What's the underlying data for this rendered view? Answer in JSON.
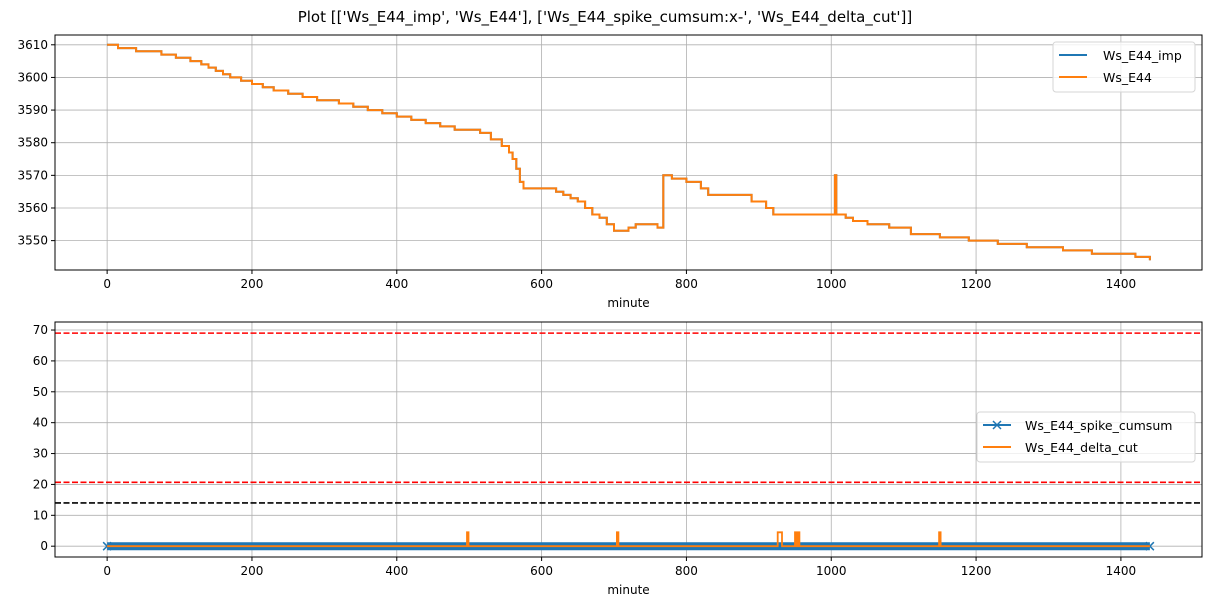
{
  "title": "Plot [['Ws_E44_imp', 'Ws_E44'], ['Ws_E44_spike_cumsum:x-', 'Ws_E44_delta_cut']]",
  "colors": {
    "blue": "#1f77b4",
    "orange": "#ff7f0e",
    "red": "#ff0000",
    "black": "#000000",
    "grid": "#b0b0b0"
  },
  "chart_data": [
    {
      "type": "line",
      "xlabel": "minute",
      "ylabel": "",
      "xlim": [
        -72,
        1512
      ],
      "ylim": [
        3541,
        3613
      ],
      "xticks": [
        0,
        200,
        400,
        600,
        800,
        1000,
        1200,
        1400
      ],
      "yticks": [
        3550,
        3560,
        3570,
        3580,
        3590,
        3600,
        3610
      ],
      "grid": true,
      "legend_position": "upper right",
      "series": [
        {
          "name": "Ws_E44_imp",
          "color": "#1f77b4",
          "style": "step",
          "points": [
            [
              0,
              3610
            ],
            [
              15,
              3609
            ],
            [
              40,
              3608
            ],
            [
              75,
              3607
            ],
            [
              95,
              3606
            ],
            [
              115,
              3605
            ],
            [
              130,
              3604
            ],
            [
              140,
              3603
            ],
            [
              150,
              3602
            ],
            [
              160,
              3601
            ],
            [
              170,
              3600
            ],
            [
              185,
              3599
            ],
            [
              200,
              3598
            ],
            [
              215,
              3597
            ],
            [
              230,
              3596
            ],
            [
              250,
              3595
            ],
            [
              270,
              3594
            ],
            [
              290,
              3593
            ],
            [
              320,
              3592
            ],
            [
              340,
              3591
            ],
            [
              360,
              3590
            ],
            [
              380,
              3589
            ],
            [
              400,
              3588
            ],
            [
              420,
              3587
            ],
            [
              440,
              3586
            ],
            [
              460,
              3585
            ],
            [
              480,
              3584
            ],
            [
              515,
              3583
            ],
            [
              530,
              3581
            ],
            [
              545,
              3579
            ],
            [
              555,
              3577
            ],
            [
              560,
              3575
            ],
            [
              565,
              3572
            ],
            [
              570,
              3568
            ],
            [
              575,
              3566
            ],
            [
              620,
              3565
            ],
            [
              630,
              3564
            ],
            [
              640,
              3563
            ],
            [
              650,
              3562
            ],
            [
              660,
              3560
            ],
            [
              670,
              3558
            ],
            [
              680,
              3557
            ],
            [
              690,
              3555
            ],
            [
              700,
              3553
            ],
            [
              720,
              3554
            ],
            [
              730,
              3555
            ],
            [
              760,
              3554
            ],
            [
              768,
              3570
            ],
            [
              780,
              3569
            ],
            [
              800,
              3568
            ],
            [
              820,
              3566
            ],
            [
              830,
              3564
            ],
            [
              870,
              3564
            ],
            [
              890,
              3562
            ],
            [
              910,
              3560
            ],
            [
              920,
              3558
            ],
            [
              1000,
              3558
            ],
            [
              1005,
              3570
            ],
            [
              1007,
              3558
            ],
            [
              1020,
              3557
            ],
            [
              1030,
              3556
            ],
            [
              1050,
              3555
            ],
            [
              1080,
              3554
            ],
            [
              1110,
              3552
            ],
            [
              1150,
              3551
            ],
            [
              1190,
              3550
            ],
            [
              1230,
              3549
            ],
            [
              1270,
              3548
            ],
            [
              1320,
              3547
            ],
            [
              1360,
              3546
            ],
            [
              1420,
              3545
            ],
            [
              1440,
              3544
            ]
          ]
        },
        {
          "name": "Ws_E44",
          "color": "#ff7f0e",
          "style": "step",
          "points": [
            [
              0,
              3610
            ],
            [
              15,
              3609
            ],
            [
              40,
              3608
            ],
            [
              75,
              3607
            ],
            [
              95,
              3606
            ],
            [
              115,
              3605
            ],
            [
              130,
              3604
            ],
            [
              140,
              3603
            ],
            [
              150,
              3602
            ],
            [
              160,
              3601
            ],
            [
              170,
              3600
            ],
            [
              185,
              3599
            ],
            [
              200,
              3598
            ],
            [
              215,
              3597
            ],
            [
              230,
              3596
            ],
            [
              250,
              3595
            ],
            [
              270,
              3594
            ],
            [
              290,
              3593
            ],
            [
              320,
              3592
            ],
            [
              340,
              3591
            ],
            [
              360,
              3590
            ],
            [
              380,
              3589
            ],
            [
              400,
              3588
            ],
            [
              420,
              3587
            ],
            [
              440,
              3586
            ],
            [
              460,
              3585
            ],
            [
              480,
              3584
            ],
            [
              500,
              3584
            ],
            [
              515,
              3583
            ],
            [
              530,
              3581
            ],
            [
              545,
              3579
            ],
            [
              555,
              3577
            ],
            [
              560,
              3575
            ],
            [
              565,
              3572
            ],
            [
              570,
              3568
            ],
            [
              575,
              3566
            ],
            [
              620,
              3565
            ],
            [
              630,
              3564
            ],
            [
              640,
              3563
            ],
            [
              650,
              3562
            ],
            [
              660,
              3560
            ],
            [
              670,
              3558
            ],
            [
              680,
              3557
            ],
            [
              690,
              3555
            ],
            [
              700,
              3553
            ],
            [
              720,
              3554
            ],
            [
              730,
              3555
            ],
            [
              760,
              3554
            ],
            [
              768,
              3570
            ],
            [
              780,
              3569
            ],
            [
              800,
              3568
            ],
            [
              820,
              3566
            ],
            [
              830,
              3564
            ],
            [
              870,
              3564
            ],
            [
              890,
              3562
            ],
            [
              910,
              3560
            ],
            [
              920,
              3558
            ],
            [
              1000,
              3558
            ],
            [
              1005,
              3570
            ],
            [
              1007,
              3558
            ],
            [
              1020,
              3557
            ],
            [
              1030,
              3556
            ],
            [
              1050,
              3555
            ],
            [
              1080,
              3554
            ],
            [
              1110,
              3552
            ],
            [
              1150,
              3551
            ],
            [
              1190,
              3550
            ],
            [
              1230,
              3549
            ],
            [
              1270,
              3548
            ],
            [
              1320,
              3547
            ],
            [
              1360,
              3546
            ],
            [
              1420,
              3545
            ],
            [
              1440,
              3544
            ]
          ]
        }
      ]
    },
    {
      "type": "line",
      "xlabel": "minute",
      "ylabel": "",
      "xlim": [
        -72,
        1512
      ],
      "ylim": [
        -3.5,
        72.6
      ],
      "xticks": [
        0,
        200,
        400,
        600,
        800,
        1000,
        1200,
        1400
      ],
      "yticks": [
        0,
        10,
        20,
        30,
        40,
        50,
        60,
        70
      ],
      "grid": true,
      "legend_position": "center right",
      "hlines": [
        {
          "y": 69,
          "color": "#ff0000",
          "style": "dashed"
        },
        {
          "y": 20.7,
          "color": "#ff0000",
          "style": "dashed"
        },
        {
          "y": 14,
          "color": "#000000",
          "style": "dashed"
        }
      ],
      "series": [
        {
          "name": "Ws_E44_spike_cumsum",
          "color": "#1f77b4",
          "style": "x-",
          "points": [
            [
              0,
              0
            ],
            [
              1440,
              0
            ]
          ]
        },
        {
          "name": "Ws_E44_delta_cut",
          "color": "#ff7f0e",
          "style": "line",
          "points": [
            [
              0,
              0
            ],
            [
              497,
              0
            ],
            [
              497,
              4.5
            ],
            [
              499,
              4.5
            ],
            [
              499,
              0
            ],
            [
              704,
              0
            ],
            [
              704,
              4.5
            ],
            [
              706,
              4.5
            ],
            [
              706,
              0
            ],
            [
              926,
              0
            ],
            [
              926,
              4.5
            ],
            [
              932,
              4.5
            ],
            [
              932,
              0
            ],
            [
              950,
              0
            ],
            [
              950,
              4.5
            ],
            [
              952,
              4.5
            ],
            [
              952,
              0
            ],
            [
              954,
              0
            ],
            [
              954,
              4.5
            ],
            [
              956,
              4.5
            ],
            [
              956,
              0
            ],
            [
              1149,
              0
            ],
            [
              1149,
              4.5
            ],
            [
              1151,
              4.5
            ],
            [
              1151,
              0
            ],
            [
              1440,
              0
            ]
          ]
        }
      ]
    }
  ]
}
